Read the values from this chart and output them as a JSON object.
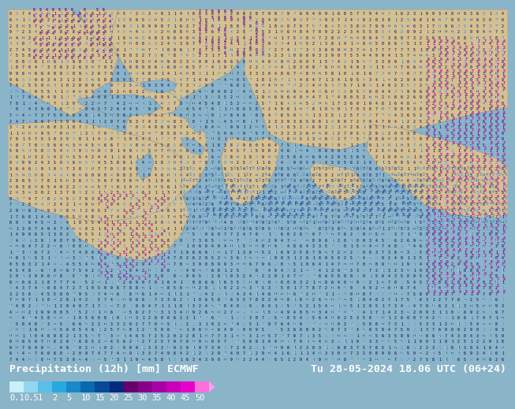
{
  "title_left": "Precipitation (12h) [mm] ECMWF",
  "title_right": "Tu 28-05-2024 18.06 UTC (06+24)",
  "colorbar_levels": [
    0.1,
    0.5,
    1,
    2,
    5,
    10,
    15,
    20,
    25,
    30,
    35,
    40,
    45,
    50
  ],
  "colorbar_colors": [
    "#c8f0f8",
    "#90d8f0",
    "#58c0e8",
    "#28a8e0",
    "#1888c8",
    "#0868b0",
    "#084898",
    "#082880",
    "#680068",
    "#880088",
    "#a800a8",
    "#c800b8",
    "#e800c8",
    "#f870d8"
  ],
  "colorbar_arrow_color": "#f8a0e8",
  "colorbar_tick_labels": [
    "0.1",
    "0.5",
    "1",
    "2",
    "5",
    "10",
    "15",
    "20",
    "25",
    "30",
    "35",
    "40",
    "45",
    "50"
  ],
  "bottom_bg_color": "#000000",
  "title_color": "#ffffff",
  "tick_color": "#ffffff",
  "font_size_title": 9.5,
  "font_size_ticks": 7.5,
  "land_color": "#d4c090",
  "sea_color": "#8ab4c8",
  "precip_light_blue": "#a0d8f0",
  "precip_medium_blue": "#5090c0",
  "precip_dark_blue": "#1848a0",
  "precip_purple": "#8000a0",
  "precip_magenta": "#c000b0",
  "number_color_dark": "#000060",
  "number_color_light": "#ffffff",
  "map_border_color": "#808080"
}
